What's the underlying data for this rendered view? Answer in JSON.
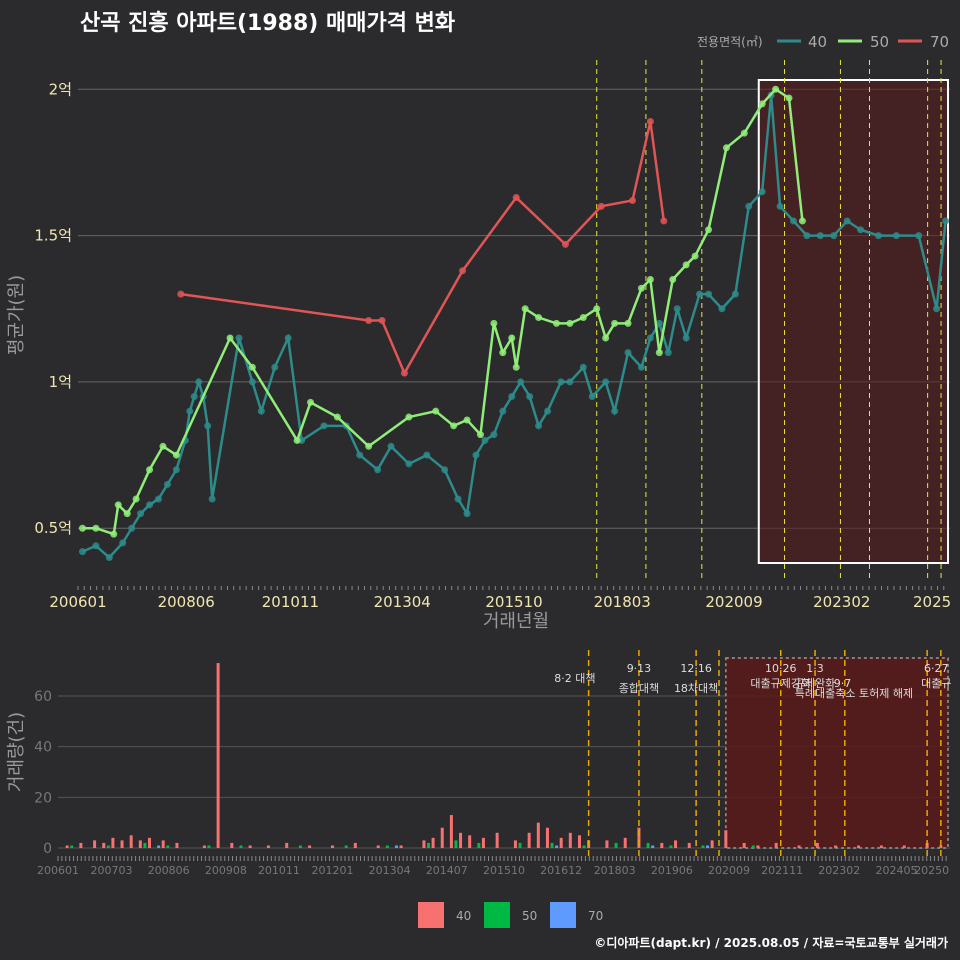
{
  "title": "산곡 진흥 아파트(1988) 매매가격 변화",
  "footer": "©디아파트(dapt.kr) / 2025.08.05 / 자료=국토교통부 실거래가",
  "colors": {
    "s40": "#2e8b8b",
    "s50": "#90ee78",
    "s70": "#e05555",
    "b40": "#f87171",
    "b50": "#00b844",
    "b70": "#5f9bff",
    "vline": "#e8e840",
    "vline2": "#e8a800",
    "recession": "#5a1a1a"
  },
  "chart_data": [
    {
      "type": "line",
      "title": "산곡 진흥 아파트(1988) 매매가격 변화",
      "xlabel": "거래년월",
      "ylabel": "평균가(원)",
      "xlim": [
        2006.0,
        2025.5
      ],
      "ylim": [
        0.33,
        2.1
      ],
      "x_ticks": [
        {
          "v": 2006.0,
          "label": "200601"
        },
        {
          "v": 2008.42,
          "label": "200806"
        },
        {
          "v": 2010.75,
          "label": "201011"
        },
        {
          "v": 2013.25,
          "label": "201304"
        },
        {
          "v": 2015.75,
          "label": "201510"
        },
        {
          "v": 2018.17,
          "label": "201803"
        },
        {
          "v": 2020.67,
          "label": "202009"
        },
        {
          "v": 2023.08,
          "label": "202302"
        },
        {
          "v": 2025.1,
          "label": "2025"
        }
      ],
      "y_ticks": [
        {
          "v": 0.5,
          "label": "0.5억"
        },
        {
          "v": 1.0,
          "label": "1억"
        },
        {
          "v": 1.5,
          "label": "1.5억"
        },
        {
          "v": 2.0,
          "label": "2억"
        }
      ],
      "legend_title": "전용면적(㎡)",
      "legend": [
        "40",
        "50",
        "70"
      ],
      "vlines": [
        2017.6,
        2018.7,
        2019.95,
        2021.8,
        2023.05,
        2023.7,
        2025.0,
        2025.3
      ],
      "highlight_range": [
        2021.0,
        2025.5
      ],
      "series": [
        {
          "name": "40",
          "x": [
            2006.1,
            2006.4,
            2006.7,
            2007.0,
            2007.2,
            2007.4,
            2007.6,
            2007.8,
            2008.0,
            2008.2,
            2008.4,
            2008.5,
            2008.6,
            2008.7,
            2008.8,
            2008.9,
            2009.0,
            2009.6,
            2009.9,
            2010.1,
            2010.4,
            2010.7,
            2011.0,
            2011.5,
            2012.0,
            2012.3,
            2012.7,
            2013.0,
            2013.4,
            2013.8,
            2014.2,
            2014.5,
            2014.7,
            2014.9,
            2015.1,
            2015.3,
            2015.5,
            2015.7,
            2015.9,
            2016.1,
            2016.3,
            2016.5,
            2016.8,
            2017.0,
            2017.3,
            2017.5,
            2017.8,
            2018.0,
            2018.3,
            2018.6,
            2018.8,
            2019.0,
            2019.2,
            2019.4,
            2019.6,
            2019.9,
            2020.1,
            2020.4,
            2020.7,
            2021.0,
            2021.3,
            2021.5,
            2021.7,
            2022.0,
            2022.3,
            2022.6,
            2022.9,
            2023.2,
            2023.5,
            2023.9,
            2024.3,
            2024.8,
            2025.2,
            2025.4
          ],
          "y": [
            0.42,
            0.44,
            0.4,
            0.45,
            0.5,
            0.55,
            0.58,
            0.6,
            0.65,
            0.7,
            0.8,
            0.9,
            0.95,
            1.0,
            0.95,
            0.85,
            0.6,
            1.15,
            1.0,
            0.9,
            1.05,
            1.15,
            0.8,
            0.85,
            0.85,
            0.75,
            0.7,
            0.78,
            0.72,
            0.75,
            0.7,
            0.6,
            0.55,
            0.75,
            0.8,
            0.82,
            0.9,
            0.95,
            1.0,
            0.95,
            0.85,
            0.9,
            1.0,
            1.0,
            1.05,
            0.95,
            1.0,
            0.9,
            1.1,
            1.05,
            1.15,
            1.2,
            1.1,
            1.25,
            1.15,
            1.3,
            1.3,
            1.25,
            1.3,
            1.6,
            1.65,
            1.98,
            1.6,
            1.55,
            1.5,
            1.5,
            1.5,
            1.55,
            1.52,
            1.5,
            1.5,
            1.5,
            1.25,
            1.55
          ]
        },
        {
          "name": "50",
          "x": [
            2006.1,
            2006.4,
            2006.8,
            2006.9,
            2007.1,
            2007.3,
            2007.6,
            2007.9,
            2008.2,
            2009.4,
            2009.9,
            2010.9,
            2011.2,
            2011.8,
            2012.5,
            2013.4,
            2014.0,
            2014.4,
            2014.7,
            2015.0,
            2015.3,
            2015.5,
            2015.7,
            2015.8,
            2016.0,
            2016.3,
            2016.7,
            2017.0,
            2017.3,
            2017.6,
            2017.8,
            2018.0,
            2018.3,
            2018.6,
            2018.8,
            2019.0,
            2019.3,
            2019.6,
            2019.8,
            2020.1,
            2020.5,
            2020.9,
            2021.3,
            2021.6,
            2021.9,
            2022.2
          ],
          "y": [
            0.5,
            0.5,
            0.48,
            0.58,
            0.55,
            0.6,
            0.7,
            0.78,
            0.75,
            1.15,
            1.05,
            0.8,
            0.93,
            0.88,
            0.78,
            0.88,
            0.9,
            0.85,
            0.87,
            0.82,
            1.2,
            1.1,
            1.15,
            1.05,
            1.25,
            1.22,
            1.2,
            1.2,
            1.22,
            1.25,
            1.15,
            1.2,
            1.2,
            1.32,
            1.35,
            1.1,
            1.35,
            1.4,
            1.43,
            1.52,
            1.8,
            1.85,
            1.95,
            2.0,
            1.97,
            1.55
          ]
        },
        {
          "name": "70",
          "x": [
            2008.3,
            2012.5,
            2012.8,
            2013.3,
            2014.6,
            2015.8,
            2016.9,
            2017.7,
            2018.4,
            2018.8,
            2019.1
          ],
          "y": [
            1.3,
            1.21,
            1.21,
            1.03,
            1.38,
            1.63,
            1.47,
            1.6,
            1.62,
            1.89,
            1.55
          ]
        }
      ]
    },
    {
      "type": "bar",
      "title": "",
      "ylabel": "거래량(건)",
      "xlim": [
        2006.0,
        2025.5
      ],
      "ylim": [
        0,
        75
      ],
      "y_ticks": [
        0,
        20,
        40,
        60
      ],
      "x_ticks": [
        {
          "v": 2006.0,
          "label": "200601"
        },
        {
          "v": 2007.17,
          "label": "200703"
        },
        {
          "v": 2008.42,
          "label": "200806"
        },
        {
          "v": 2009.67,
          "label": "200908"
        },
        {
          "v": 2010.83,
          "label": "201011"
        },
        {
          "v": 2012.0,
          "label": "201201"
        },
        {
          "v": 2013.25,
          "label": "201304"
        },
        {
          "v": 2014.5,
          "label": "201407"
        },
        {
          "v": 2015.75,
          "label": "201510"
        },
        {
          "v": 2017.0,
          "label": "201612"
        },
        {
          "v": 2018.17,
          "label": "201803"
        },
        {
          "v": 2019.42,
          "label": "201906"
        },
        {
          "v": 2020.67,
          "label": "202009"
        },
        {
          "v": 2021.83,
          "label": "202111"
        },
        {
          "v": 2023.08,
          "label": "202302"
        },
        {
          "v": 2024.33,
          "label": "202405"
        },
        {
          "v": 2025.1,
          "label": "20250"
        }
      ],
      "legend": [
        "40",
        "50",
        "70"
      ],
      "bars_40": {
        "x": [
          2006.2,
          2006.5,
          2006.8,
          2007.0,
          2007.2,
          2007.4,
          2007.6,
          2007.8,
          2008.0,
          2008.3,
          2008.6,
          2009.2,
          2009.5,
          2009.8,
          2010.2,
          2010.6,
          2011.0,
          2011.5,
          2012.0,
          2012.5,
          2013.0,
          2013.5,
          2014.0,
          2014.2,
          2014.4,
          2014.6,
          2014.8,
          2015.0,
          2015.3,
          2015.6,
          2016.0,
          2016.3,
          2016.5,
          2016.7,
          2017.0,
          2017.2,
          2017.4,
          2017.6,
          2018.0,
          2018.4,
          2018.7,
          2019.2,
          2019.5,
          2019.8,
          2020.3,
          2020.6,
          2021.0,
          2021.3,
          2021.7,
          2022.2,
          2022.6,
          2023.0,
          2023.5,
          2024.0,
          2024.5,
          2025.0,
          2025.3
        ],
        "y": [
          1,
          2,
          3,
          2,
          4,
          3,
          5,
          3,
          4,
          3,
          2,
          1,
          73,
          2,
          1,
          1,
          2,
          1,
          1,
          2,
          1,
          1,
          3,
          4,
          8,
          13,
          6,
          5,
          4,
          6,
          3,
          6,
          10,
          8,
          4,
          6,
          5,
          3,
          3,
          4,
          8,
          2,
          3,
          2,
          3,
          7,
          2,
          1,
          2,
          1,
          2,
          1,
          1,
          1,
          1,
          2,
          1
        ]
      },
      "bars_50": {
        "x": [
          2006.3,
          2007.1,
          2007.9,
          2008.4,
          2009.3,
          2010.0,
          2011.3,
          2012.3,
          2013.2,
          2014.1,
          2014.7,
          2015.2,
          2016.1,
          2016.8,
          2017.5,
          2018.2,
          2018.9,
          2019.4,
          2020.1,
          2021.2
        ],
        "y": [
          1,
          1,
          2,
          1,
          1,
          1,
          1,
          1,
          1,
          2,
          3,
          2,
          2,
          2,
          1,
          2,
          2,
          1,
          1,
          1
        ]
      },
      "bars_70": {
        "x": [
          2008.2,
          2013.4,
          2016.9,
          2019.0,
          2020.2
        ],
        "y": [
          1,
          1,
          1,
          1,
          1
        ]
      },
      "vlines": [
        2017.6,
        2018.7,
        2019.95,
        2020.45,
        2021.8,
        2022.55,
        2023.2,
        2025.0,
        2025.3
      ],
      "highlight_range": [
        2020.6,
        2025.5
      ],
      "annotations": [
        {
          "x": 2017.3,
          "text": "8·2 대책",
          "row": 1
        },
        {
          "x": 2018.7,
          "text": "9·13",
          "row": 0
        },
        {
          "x": 2018.7,
          "text": "종합대책",
          "row": 2
        },
        {
          "x": 2019.95,
          "text": "12·16",
          "row": 0
        },
        {
          "x": 2019.95,
          "text": "18차대책",
          "row": 2
        },
        {
          "x": 2021.8,
          "text": "10·26",
          "row": 0
        },
        {
          "x": 2021.8,
          "text": "대출규제강화",
          "row": 1.5
        },
        {
          "x": 2022.55,
          "text": "1·3",
          "row": 0
        },
        {
          "x": 2022.55,
          "text": "규제완화",
          "row": 1.5
        },
        {
          "x": 2023.15,
          "text": "9·7",
          "row": 1.5
        },
        {
          "x": 2023.4,
          "text": "특례대출축소 토허제 해제",
          "row": 2.5
        },
        {
          "x": 2025.2,
          "text": "6·27",
          "row": 0
        },
        {
          "x": 2025.2,
          "text": "대출규",
          "row": 1.5
        }
      ]
    }
  ],
  "labels": {
    "xlabel_top": "거래년월",
    "ylabel_top": "평균가(원)",
    "ylabel_bottom": "거래량(건)",
    "legend_title": "전용면적(㎡)",
    "legend_40": "40",
    "legend_50": "50",
    "legend_70": "70"
  }
}
